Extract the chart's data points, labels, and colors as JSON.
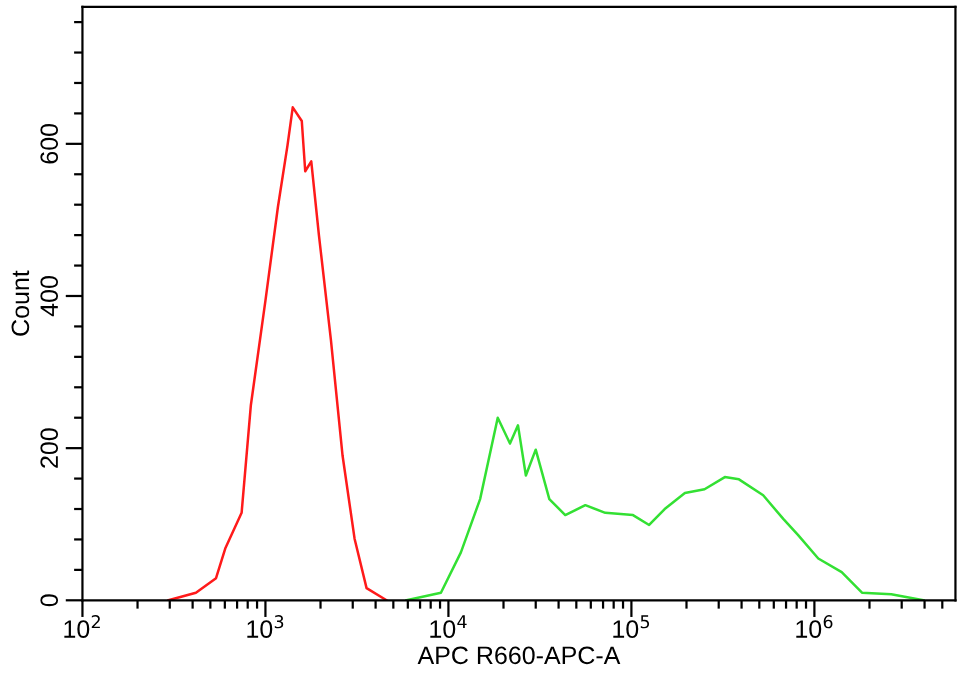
{
  "chart_data": {
    "type": "line",
    "xlabel": "APC R660-APC-A",
    "ylabel": "Count",
    "log": "x",
    "grid": false,
    "legend": false,
    "marker": "none",
    "line_style": "solid",
    "xlim": [
      100,
      5900000
    ],
    "ylim": [
      0,
      780
    ],
    "xticks": [
      {
        "value": 100,
        "label": "10$^{2}$"
      },
      {
        "value": 200,
        "label": null
      },
      {
        "value": 300,
        "label": null
      },
      {
        "value": 400,
        "label": null
      },
      {
        "value": 500,
        "label": null
      },
      {
        "value": 600,
        "label": null
      },
      {
        "value": 700,
        "label": null
      },
      {
        "value": 800,
        "label": null
      },
      {
        "value": 900,
        "label": null
      },
      {
        "value": 1000,
        "label": "10$^{3}$"
      },
      {
        "value": 2000,
        "label": null
      },
      {
        "value": 3000,
        "label": null
      },
      {
        "value": 4000,
        "label": null
      },
      {
        "value": 5000,
        "label": null
      },
      {
        "value": 6000,
        "label": null
      },
      {
        "value": 7000,
        "label": null
      },
      {
        "value": 8000,
        "label": null
      },
      {
        "value": 9000,
        "label": null
      },
      {
        "value": 10000,
        "label": "10$^{4}$"
      },
      {
        "value": 20000,
        "label": null
      },
      {
        "value": 30000,
        "label": null
      },
      {
        "value": 40000,
        "label": null
      },
      {
        "value": 50000,
        "label": null
      },
      {
        "value": 60000,
        "label": null
      },
      {
        "value": 70000,
        "label": null
      },
      {
        "value": 80000,
        "label": null
      },
      {
        "value": 90000,
        "label": null
      },
      {
        "value": 100000,
        "label": "10$^{5}$"
      },
      {
        "value": 200000,
        "label": null
      },
      {
        "value": 300000,
        "label": null
      },
      {
        "value": 400000,
        "label": null
      },
      {
        "value": 500000,
        "label": null
      },
      {
        "value": 600000,
        "label": null
      },
      {
        "value": 700000,
        "label": null
      },
      {
        "value": 800000,
        "label": null
      },
      {
        "value": 900000,
        "label": null
      },
      {
        "value": 1000000,
        "label": "10$^{6}$"
      },
      {
        "value": 2000000,
        "label": null
      },
      {
        "value": 3000000,
        "label": null
      },
      {
        "value": 4000000,
        "label": null
      },
      {
        "value": 5000000,
        "label": null
      }
    ],
    "yticks": [
      0,
      {
        "value": 40,
        "label": null
      },
      {
        "value": 80,
        "label": null
      },
      {
        "value": 120,
        "label": null
      },
      {
        "value": 160,
        "label": null
      },
      200,
      {
        "value": 240,
        "label": null
      },
      {
        "value": 280,
        "label": null
      },
      {
        "value": 320,
        "label": null
      },
      {
        "value": 360,
        "label": null
      },
      400,
      {
        "value": 440,
        "label": null
      },
      {
        "value": 480,
        "label": null
      },
      {
        "value": 520,
        "label": null
      },
      {
        "value": 560,
        "label": null
      },
      600,
      {
        "value": 640,
        "label": null
      },
      {
        "value": 680,
        "label": null
      },
      {
        "value": 720,
        "label": null
      },
      {
        "value": 760,
        "label": null
      }
    ],
    "series": [
      {
        "color": "#ff1a1a",
        "x": [
          295,
          417,
          537,
          603,
          741,
          832,
          1000,
          1170,
          1320,
          1410,
          1580,
          1650,
          1780,
          1960,
          2280,
          2640,
          3070,
          3570,
          4600
        ],
        "values": [
          0,
          10,
          29,
          68,
          115,
          256,
          394,
          517,
          598,
          648,
          630,
          564,
          577,
          480,
          342,
          190,
          81,
          16,
          0
        ]
      },
      {
        "color": "#33e033",
        "x": [
          5900,
          9100,
          11700,
          14900,
          18600,
          21700,
          24000,
          26500,
          30000,
          35600,
          43500,
          56000,
          72000,
          102000,
          125000,
          152000,
          196000,
          251000,
          324000,
          387000,
          525000,
          676000,
          813000,
          1050000,
          1410000,
          1820000,
          2630000,
          3950000
        ],
        "values": [
          0,
          10,
          63,
          133,
          240,
          206,
          230,
          164,
          198,
          133,
          112,
          125,
          115,
          112,
          99,
          120,
          141,
          146,
          162,
          159,
          138,
          107,
          86,
          55,
          37,
          10,
          8,
          0
        ]
      }
    ]
  }
}
